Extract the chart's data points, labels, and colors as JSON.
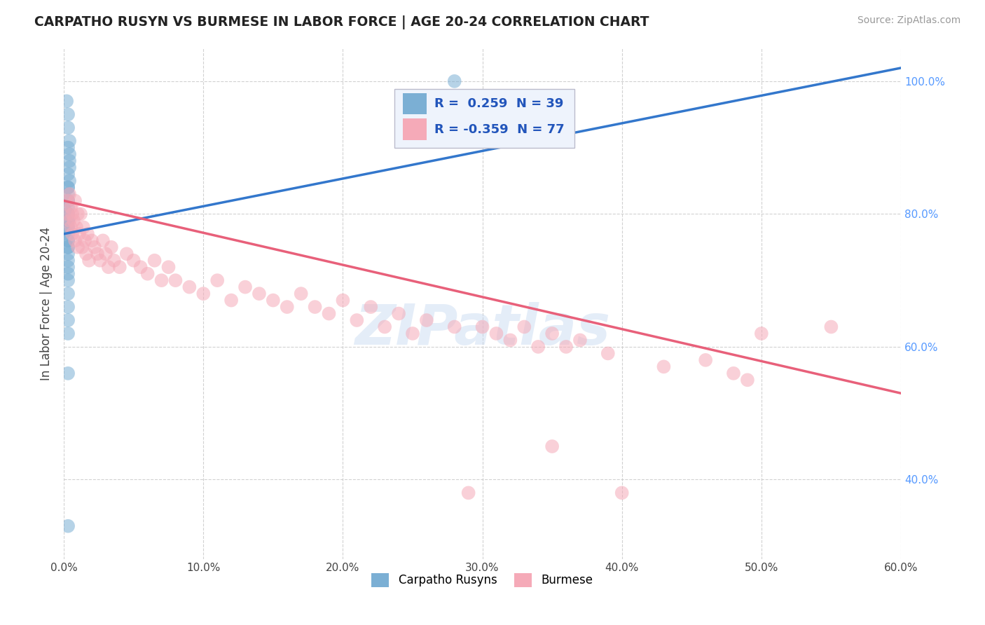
{
  "title": "CARPATHO RUSYN VS BURMESE IN LABOR FORCE | AGE 20-24 CORRELATION CHART",
  "source": "Source: ZipAtlas.com",
  "ylabel": "In Labor Force | Age 20-24",
  "watermark": "ZIPatlas",
  "xmin": 0.0,
  "xmax": 0.6,
  "ymin": 0.28,
  "ymax": 1.05,
  "blue_R": 0.259,
  "blue_N": 39,
  "pink_R": -0.359,
  "pink_N": 77,
  "blue_color": "#7bafd4",
  "pink_color": "#f5aab8",
  "blue_line_color": "#3377cc",
  "pink_line_color": "#e8607a",
  "blue_scatter_x": [
    0.002,
    0.003,
    0.003,
    0.004,
    0.003,
    0.004,
    0.004,
    0.004,
    0.003,
    0.004,
    0.003,
    0.003,
    0.003,
    0.003,
    0.003,
    0.003,
    0.003,
    0.003,
    0.003,
    0.003,
    0.003,
    0.003,
    0.003,
    0.003,
    0.003,
    0.003,
    0.003,
    0.003,
    0.003,
    0.003,
    0.003,
    0.003,
    0.003,
    0.003,
    0.003,
    0.003,
    0.003,
    0.003,
    0.28
  ],
  "blue_scatter_y": [
    0.97,
    0.95,
    0.93,
    0.91,
    0.9,
    0.89,
    0.88,
    0.87,
    0.86,
    0.85,
    0.84,
    0.84,
    0.83,
    0.82,
    0.82,
    0.81,
    0.8,
    0.8,
    0.79,
    0.79,
    0.78,
    0.78,
    0.77,
    0.76,
    0.76,
    0.75,
    0.75,
    0.74,
    0.73,
    0.72,
    0.71,
    0.7,
    0.68,
    0.66,
    0.64,
    0.62,
    0.56,
    0.33,
    1.0
  ],
  "pink_scatter_x": [
    0.003,
    0.003,
    0.004,
    0.004,
    0.005,
    0.005,
    0.006,
    0.006,
    0.007,
    0.008,
    0.008,
    0.009,
    0.01,
    0.01,
    0.011,
    0.012,
    0.013,
    0.014,
    0.015,
    0.016,
    0.017,
    0.018,
    0.02,
    0.022,
    0.024,
    0.026,
    0.028,
    0.03,
    0.032,
    0.034,
    0.036,
    0.04,
    0.045,
    0.05,
    0.055,
    0.06,
    0.065,
    0.07,
    0.075,
    0.08,
    0.09,
    0.1,
    0.11,
    0.12,
    0.13,
    0.14,
    0.15,
    0.16,
    0.17,
    0.18,
    0.19,
    0.2,
    0.21,
    0.22,
    0.23,
    0.24,
    0.25,
    0.26,
    0.28,
    0.3,
    0.31,
    0.32,
    0.33,
    0.34,
    0.35,
    0.36,
    0.37,
    0.39,
    0.43,
    0.46,
    0.48,
    0.49,
    0.5,
    0.35,
    0.29,
    0.4,
    0.55
  ],
  "pink_scatter_y": [
    0.82,
    0.8,
    0.83,
    0.79,
    0.81,
    0.78,
    0.8,
    0.77,
    0.79,
    0.82,
    0.76,
    0.78,
    0.8,
    0.75,
    0.77,
    0.8,
    0.75,
    0.78,
    0.76,
    0.74,
    0.77,
    0.73,
    0.76,
    0.75,
    0.74,
    0.73,
    0.76,
    0.74,
    0.72,
    0.75,
    0.73,
    0.72,
    0.74,
    0.73,
    0.72,
    0.71,
    0.73,
    0.7,
    0.72,
    0.7,
    0.69,
    0.68,
    0.7,
    0.67,
    0.69,
    0.68,
    0.67,
    0.66,
    0.68,
    0.66,
    0.65,
    0.67,
    0.64,
    0.66,
    0.63,
    0.65,
    0.62,
    0.64,
    0.63,
    0.63,
    0.62,
    0.61,
    0.63,
    0.6,
    0.62,
    0.6,
    0.61,
    0.59,
    0.57,
    0.58,
    0.56,
    0.55,
    0.62,
    0.45,
    0.38,
    0.38,
    0.63
  ],
  "blue_line_x0": 0.0,
  "blue_line_x1": 0.6,
  "blue_line_y0": 0.77,
  "blue_line_y1": 1.02,
  "pink_line_x0": 0.0,
  "pink_line_x1": 0.6,
  "pink_line_y0": 0.82,
  "pink_line_y1": 0.53
}
